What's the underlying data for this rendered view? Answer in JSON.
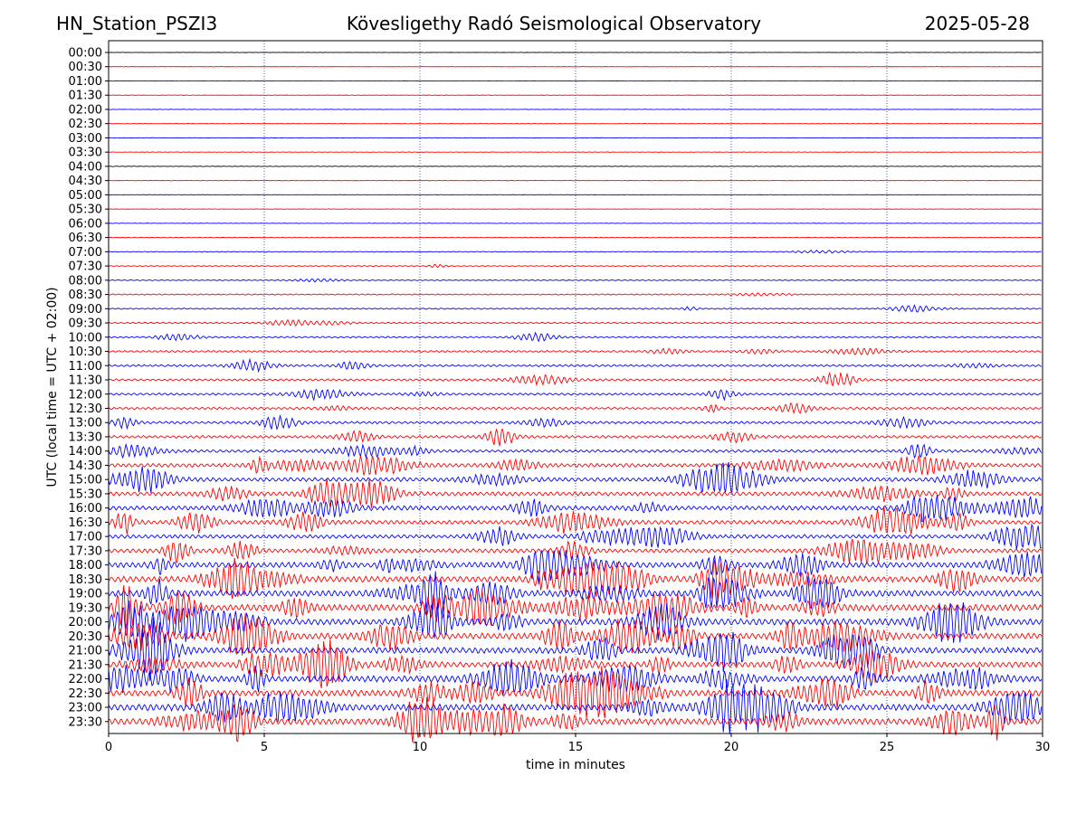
{
  "header": {
    "station": "HN_Station_PSZI3",
    "observatory": "Kövesligethy Radó Seismological Observatory",
    "date": "2025-05-28"
  },
  "chart_data": {
    "type": "line",
    "title": "Kövesligethy Radó Seismological Observatory",
    "xlabel": "time in minutes",
    "ylabel": "UTC (local time = UTC + 02:00)",
    "xlim": [
      0,
      30
    ],
    "xticks": [
      0,
      5,
      10,
      15,
      20,
      25,
      30
    ],
    "grid": "vertical dotted at every 5 minutes",
    "rows": [
      "00:00",
      "00:30",
      "01:00",
      "01:30",
      "02:00",
      "02:30",
      "03:00",
      "03:30",
      "04:00",
      "04:30",
      "05:00",
      "05:30",
      "06:00",
      "06:30",
      "07:00",
      "07:30",
      "08:00",
      "08:30",
      "09:00",
      "09:30",
      "10:00",
      "10:30",
      "11:00",
      "11:30",
      "12:00",
      "12:30",
      "13:00",
      "13:30",
      "14:00",
      "14:30",
      "15:00",
      "15:30",
      "16:00",
      "16:30",
      "17:00",
      "17:30",
      "18:00",
      "18:30",
      "19:00",
      "19:30",
      "20:00",
      "20:30",
      "21:00",
      "21:30",
      "22:00",
      "22:30",
      "23:00",
      "23:30"
    ],
    "row_amplitude": [
      0.3,
      0.3,
      0.4,
      0.4,
      0.4,
      0.4,
      0.5,
      0.4,
      0.6,
      0.4,
      0.6,
      0.4,
      0.5,
      0.7,
      1,
      1.2,
      1.4,
      1.6,
      1.8,
      2,
      2.2,
      2.6,
      3,
      3.2,
      3,
      3.2,
      3.5,
      4,
      4.2,
      5.5,
      6,
      6,
      6.5,
      6,
      5.5,
      6,
      8,
      8.5,
      9,
      9.5,
      9.5,
      9,
      9,
      8.5,
      9,
      9,
      9.5,
      9.5
    ],
    "colors": {
      "blue": "#0000ff",
      "red": "#ff0000",
      "black": "#000000"
    },
    "row_colors": [
      "black",
      "red",
      "blue",
      "red",
      "blue",
      "red",
      "blue",
      "red",
      "black",
      "red",
      "blue",
      "red",
      "blue",
      "red",
      "blue",
      "red",
      "blue",
      "red",
      "blue",
      "red",
      "blue",
      "red",
      "blue",
      "red",
      "blue",
      "red",
      "blue",
      "red",
      "blue",
      "red",
      "blue",
      "red",
      "blue",
      "red",
      "blue",
      "red",
      "blue",
      "red",
      "blue",
      "red",
      "blue",
      "red",
      "blue",
      "red",
      "blue",
      "red",
      "blue",
      "red"
    ]
  }
}
